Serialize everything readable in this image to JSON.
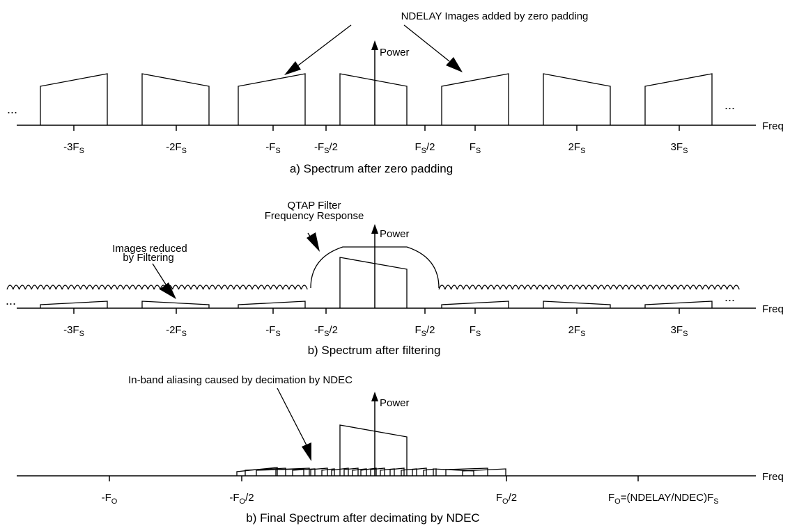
{
  "panel_a": {
    "annotation": "NDELAY Images added by zero padding",
    "power_label": "Power",
    "freq_label": "Freq",
    "ellipsis": "...",
    "ticks": [
      {
        "base": "-3F",
        "sub": "S",
        "tail": ""
      },
      {
        "base": "-2F",
        "sub": "S",
        "tail": ""
      },
      {
        "base": "-F",
        "sub": "S",
        "tail": ""
      },
      {
        "base": "-F",
        "sub": "S",
        "tail": "/2"
      },
      {
        "base": "F",
        "sub": "S",
        "tail": "/2"
      },
      {
        "base": "F",
        "sub": "S",
        "tail": ""
      },
      {
        "base": "2F",
        "sub": "S",
        "tail": ""
      },
      {
        "base": "3F",
        "sub": "S",
        "tail": ""
      }
    ],
    "caption": "a) Spectrum after zero padding"
  },
  "panel_b": {
    "filter_label_1": "QTAP Filter",
    "filter_label_2": "Frequency Response",
    "images_label_1": "Images reduced",
    "images_label_2": "by Filtering",
    "power_label": "Power",
    "freq_label": "Freq",
    "ellipsis": "...",
    "ticks": [
      {
        "base": "-3F",
        "sub": "S",
        "tail": ""
      },
      {
        "base": "-2F",
        "sub": "S",
        "tail": ""
      },
      {
        "base": "-F",
        "sub": "S",
        "tail": ""
      },
      {
        "base": "-F",
        "sub": "S",
        "tail": "/2"
      },
      {
        "base": "F",
        "sub": "S",
        "tail": "/2"
      },
      {
        "base": "F",
        "sub": "S",
        "tail": ""
      },
      {
        "base": "2F",
        "sub": "S",
        "tail": ""
      },
      {
        "base": "3F",
        "sub": "S",
        "tail": ""
      }
    ],
    "caption": "b) Spectrum after filtering"
  },
  "panel_c": {
    "annotation": "In-band aliasing caused by decimation by NDEC",
    "power_label": "Power",
    "freq_label": "Freq",
    "ticks": [
      {
        "base": "-F",
        "sub": "O",
        "tail": ""
      },
      {
        "base": "-F",
        "sub": "O",
        "tail": "/2"
      },
      {
        "base": "F",
        "sub": "O",
        "tail": "/2"
      },
      {
        "base": "F",
        "sub": "O",
        "tail": "=(NDELAY/NDEC)F",
        "sub2": "S"
      }
    ],
    "caption": "b) Final Spectrum after decimating by NDEC"
  }
}
